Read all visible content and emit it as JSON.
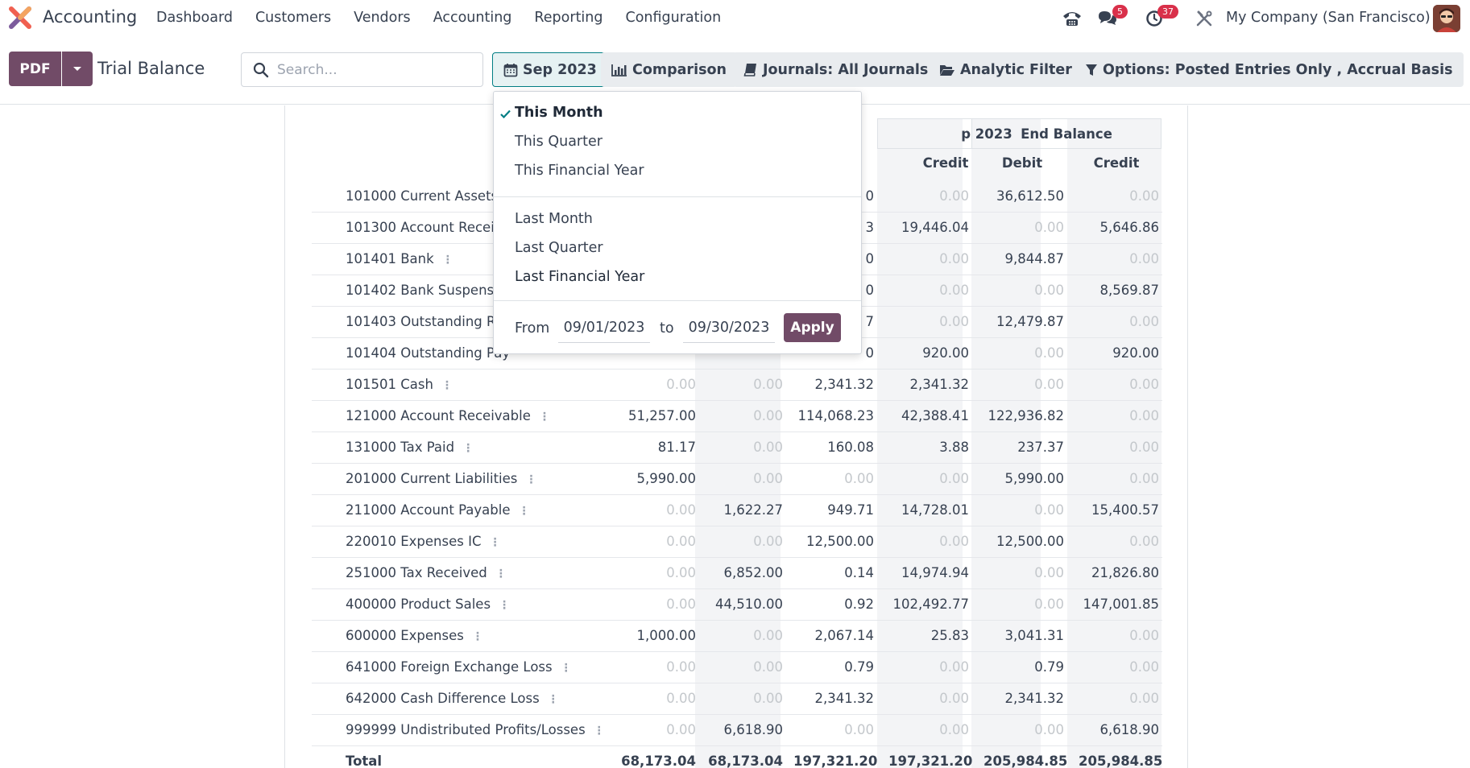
{
  "app": {
    "name": "Accounting"
  },
  "menu": [
    "Dashboard",
    "Customers",
    "Vendors",
    "Accounting",
    "Reporting",
    "Configuration"
  ],
  "systray": {
    "messages_count": "5",
    "activities_count": "37",
    "company": "My Company (San Francisco)"
  },
  "control": {
    "pdf_label": "PDF",
    "title": "Trial Balance",
    "search_placeholder": "Search...",
    "date_filter": "Sep 2023",
    "comparison": "Comparison",
    "journals": "Journals: All Journals",
    "analytic": "Analytic Filter",
    "options": "Options: Posted Entries Only , Accrual Basis"
  },
  "report": {
    "group_partial": "p 2023",
    "group_end": "End Balance",
    "col_credit": "Credit",
    "col_debit": "Debit",
    "col_credit2": "Credit",
    "rows": [
      {
        "name": "101000 Current Assets",
        "c1": "",
        "c2": "",
        "c3": "0",
        "c4": "0.00",
        "c5": "36,612.50",
        "c6": "0.00"
      },
      {
        "name": "101300 Account Receiva",
        "c1": "",
        "c2": "",
        "c3": "3",
        "c4": "19,446.04",
        "c5": "0.00",
        "c6": "5,646.86"
      },
      {
        "name": "101401 Bank",
        "c1": "",
        "c2": "",
        "c3": "0",
        "c4": "0.00",
        "c5": "9,844.87",
        "c6": "0.00"
      },
      {
        "name": "101402 Bank Suspense A",
        "c1": "",
        "c2": "",
        "c3": "0",
        "c4": "0.00",
        "c5": "0.00",
        "c6": "8,569.87"
      },
      {
        "name": "101403 Outstanding Re",
        "c1": "",
        "c2": "",
        "c3": "7",
        "c4": "0.00",
        "c5": "12,479.87",
        "c6": "0.00"
      },
      {
        "name": "101404 Outstanding Pay",
        "c1": "",
        "c2": "",
        "c3": "0",
        "c4": "920.00",
        "c5": "0.00",
        "c6": "920.00"
      },
      {
        "name": "101501 Cash",
        "c1": "0.00",
        "c2": "0.00",
        "c3": "2,341.32",
        "c4": "2,341.32",
        "c5": "0.00",
        "c6": "0.00"
      },
      {
        "name": "121000 Account Receivable",
        "c1": "51,257.00",
        "c2": "0.00",
        "c3": "114,068.23",
        "c4": "42,388.41",
        "c5": "122,936.82",
        "c6": "0.00"
      },
      {
        "name": "131000 Tax Paid",
        "c1": "81.17",
        "c2": "0.00",
        "c3": "160.08",
        "c4": "3.88",
        "c5": "237.37",
        "c6": "0.00"
      },
      {
        "name": "201000 Current Liabilities",
        "c1": "5,990.00",
        "c2": "0.00",
        "c3": "0.00",
        "c4": "0.00",
        "c5": "5,990.00",
        "c6": "0.00"
      },
      {
        "name": "211000 Account Payable",
        "c1": "0.00",
        "c2": "1,622.27",
        "c3": "949.71",
        "c4": "14,728.01",
        "c5": "0.00",
        "c6": "15,400.57"
      },
      {
        "name": "220010 Expenses IC",
        "c1": "0.00",
        "c2": "0.00",
        "c3": "12,500.00",
        "c4": "0.00",
        "c5": "12,500.00",
        "c6": "0.00"
      },
      {
        "name": "251000 Tax Received",
        "c1": "0.00",
        "c2": "6,852.00",
        "c3": "0.14",
        "c4": "14,974.94",
        "c5": "0.00",
        "c6": "21,826.80"
      },
      {
        "name": "400000 Product Sales",
        "c1": "0.00",
        "c2": "44,510.00",
        "c3": "0.92",
        "c4": "102,492.77",
        "c5": "0.00",
        "c6": "147,001.85"
      },
      {
        "name": "600000 Expenses",
        "c1": "1,000.00",
        "c2": "0.00",
        "c3": "2,067.14",
        "c4": "25.83",
        "c5": "3,041.31",
        "c6": "0.00"
      },
      {
        "name": "641000 Foreign Exchange Loss",
        "c1": "0.00",
        "c2": "0.00",
        "c3": "0.79",
        "c4": "0.00",
        "c5": "0.79",
        "c6": "0.00"
      },
      {
        "name": "642000 Cash Difference Loss",
        "c1": "0.00",
        "c2": "0.00",
        "c3": "2,341.32",
        "c4": "0.00",
        "c5": "2,341.32",
        "c6": "0.00"
      },
      {
        "name": "999999 Undistributed Profits/Losses",
        "c1": "0.00",
        "c2": "6,618.90",
        "c3": "0.00",
        "c4": "0.00",
        "c5": "0.00",
        "c6": "6,618.90"
      }
    ],
    "total": {
      "name": "Total",
      "c1": "68,173.04",
      "c2": "68,173.04",
      "c3": "197,321.20",
      "c4": "197,321.20",
      "c5": "205,984.85",
      "c6": "205,984.85"
    }
  },
  "dropdown": {
    "this_month": "This Month",
    "this_quarter": "This Quarter",
    "this_year": "This Financial Year",
    "last_month": "Last Month",
    "last_quarter": "Last Quarter",
    "last_year": "Last Financial Year",
    "from_label": "From",
    "date_from": "09/01/2023",
    "to_label": "to",
    "date_to": "09/30/2023",
    "apply_label": "Apply"
  },
  "colors": {
    "brand": "#714b67",
    "accent": "#017e84",
    "badge": "#d9304a"
  }
}
